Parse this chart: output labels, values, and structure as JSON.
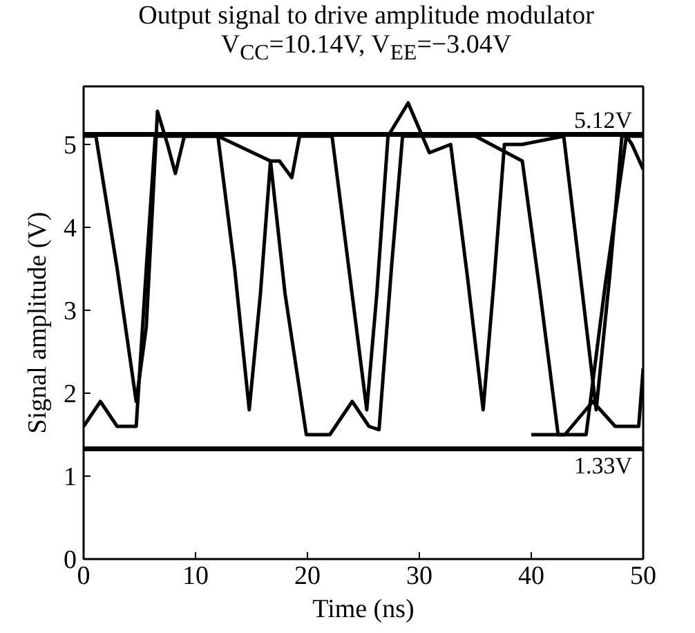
{
  "chart_data": {
    "type": "line",
    "title": "Output signal to drive amplitude modulator",
    "subtitle": "V$_{CC}$=10.14V, V$_{EE}$=−3.04V",
    "xlabel": "Time (ns)",
    "ylabel": "Signal amplitude (V)",
    "xlim": [
      0,
      50
    ],
    "ylim": [
      0,
      5.7
    ],
    "xticks": [
      0,
      10,
      20,
      30,
      40,
      50
    ],
    "yticks": [
      0,
      1,
      2,
      3,
      4,
      5
    ],
    "grid": false,
    "marker": "none",
    "line_style": "solid",
    "ref_lines": [
      {
        "axis": "y",
        "value": 5.12,
        "label": "5.12V",
        "color": "#000000"
      },
      {
        "axis": "y",
        "value": 1.33,
        "label": "1.33V",
        "color": "#000000"
      }
    ],
    "series": [
      {
        "color": "#000000",
        "x": [
          0,
          1.1,
          3,
          4.7,
          5.6,
          6.6,
          7.5,
          8.2,
          9,
          12,
          13.5,
          14.8,
          15.8,
          16.7,
          17.5,
          18.6,
          19.3,
          22.2,
          23.8,
          25.3,
          26.2,
          27.2,
          29,
          30.9,
          32.8,
          34.3,
          35.7,
          36.7,
          37.6,
          39.2,
          42.9,
          44.4,
          45.8,
          47,
          48.1,
          50
        ],
        "values": [
          5.1,
          5.1,
          3.5,
          1.9,
          2.8,
          5.4,
          5.0,
          4.65,
          5.1,
          5.1,
          3.5,
          1.8,
          3.2,
          4.8,
          4.8,
          4.6,
          5.1,
          5.1,
          3.4,
          1.8,
          3.2,
          5.1,
          5.5,
          4.9,
          5.0,
          3.4,
          1.8,
          3.4,
          5.0,
          5.0,
          5.1,
          3.4,
          1.8,
          3.4,
          5.1,
          5.1
        ]
      },
      {
        "color": "#000000",
        "x": [
          0,
          1.5,
          3,
          4.7,
          5.6,
          6.4,
          12,
          16.7,
          18,
          19.9,
          22,
          24,
          25.5,
          26.4,
          27.5,
          28.5,
          35,
          39.2,
          40.8,
          42.4,
          44.9,
          46.6,
          48.5,
          49,
          50
        ],
        "values": [
          1.6,
          1.9,
          1.6,
          1.6,
          3.5,
          5.1,
          5.1,
          4.8,
          3.2,
          1.5,
          1.5,
          1.9,
          1.6,
          1.56,
          3.5,
          5.1,
          5.1,
          4.8,
          3.2,
          1.5,
          1.5,
          3.3,
          5.1,
          5.0,
          4.7
        ]
      },
      {
        "color": "#000000",
        "x": [
          40,
          43,
          45.5,
          47.5,
          49.6,
          50
        ],
        "values": [
          1.5,
          1.5,
          1.9,
          1.6,
          1.6,
          2.3
        ]
      }
    ]
  }
}
